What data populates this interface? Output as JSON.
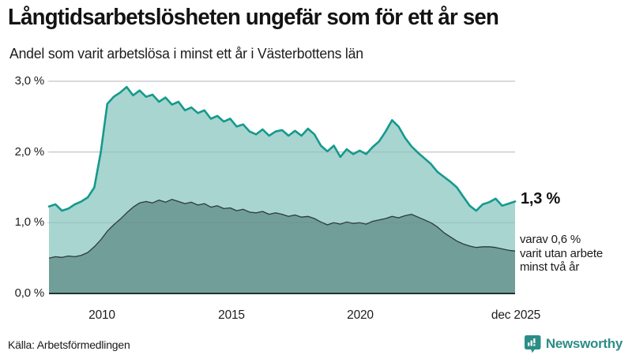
{
  "header": {
    "title": "Långtidsarbetslösheten ungefär som för ett år sen",
    "subtitle": "Andel som varit arbetslösa i minst ett år i Västerbottens län"
  },
  "chart_data": {
    "type": "area",
    "title": "Långtidsarbetslösheten ungefär som för ett år sen",
    "subtitle": "Andel som varit arbetslösa i minst ett år i Västerbottens län",
    "unit": "%",
    "x_start": 2008.0,
    "x_step": 0.25,
    "x_end": 2026.0,
    "x_end_label": "dec 2025",
    "ylim": [
      0,
      3
    ],
    "grid": "horizontal",
    "legend_position": "none",
    "colors": {
      "line_one_year": "#149a8c",
      "fill_one_year": "#a8d5d0",
      "line_two_years": "#2d3b39",
      "fill_two_years": "#719e99",
      "baseline": "#22312f",
      "gridline": "#d9dade",
      "gridline_overlay": "rgba(110,125,135,0.22)"
    },
    "yticks": [
      {
        "value": 0,
        "label": "0,0 %"
      },
      {
        "value": 1,
        "label": "1,0 %"
      },
      {
        "value": 2,
        "label": "2,0 %"
      },
      {
        "value": 3,
        "label": "3,0 %"
      }
    ],
    "xticks": [
      {
        "value": 2010.0,
        "label": "2010"
      },
      {
        "value": 2015.0,
        "label": "2015"
      },
      {
        "value": 2020.0,
        "label": "2020"
      },
      {
        "value": 2025.92,
        "label": "dec 2025"
      }
    ],
    "series": [
      {
        "name": "Arbetslösa minst ett år",
        "end_value_label": "1,3 %",
        "values": [
          1.23,
          1.26,
          1.17,
          1.2,
          1.26,
          1.3,
          1.36,
          1.5,
          2.0,
          2.68,
          2.78,
          2.84,
          2.92,
          2.8,
          2.87,
          2.78,
          2.81,
          2.71,
          2.77,
          2.67,
          2.71,
          2.59,
          2.63,
          2.55,
          2.59,
          2.47,
          2.51,
          2.43,
          2.47,
          2.36,
          2.39,
          2.29,
          2.25,
          2.32,
          2.23,
          2.29,
          2.31,
          2.23,
          2.3,
          2.23,
          2.33,
          2.25,
          2.09,
          2.01,
          2.09,
          1.93,
          2.04,
          1.97,
          2.02,
          1.97,
          2.07,
          2.15,
          2.29,
          2.45,
          2.36,
          2.2,
          2.08,
          1.99,
          1.91,
          1.83,
          1.72,
          1.65,
          1.58,
          1.5,
          1.37,
          1.24,
          1.17,
          1.26,
          1.29,
          1.34,
          1.24,
          1.27,
          1.3
        ]
      },
      {
        "name": "Arbetslösa minst två år",
        "end_value_label": "0,6 %",
        "values": [
          0.5,
          0.52,
          0.51,
          0.53,
          0.52,
          0.54,
          0.58,
          0.66,
          0.76,
          0.88,
          0.97,
          1.05,
          1.14,
          1.22,
          1.28,
          1.3,
          1.28,
          1.32,
          1.29,
          1.33,
          1.3,
          1.27,
          1.29,
          1.25,
          1.27,
          1.22,
          1.24,
          1.2,
          1.21,
          1.17,
          1.19,
          1.15,
          1.14,
          1.16,
          1.12,
          1.14,
          1.12,
          1.09,
          1.11,
          1.08,
          1.09,
          1.06,
          1.01,
          0.97,
          1.0,
          0.98,
          1.01,
          0.99,
          1.0,
          0.98,
          1.02,
          1.04,
          1.06,
          1.09,
          1.07,
          1.1,
          1.12,
          1.08,
          1.04,
          1.0,
          0.94,
          0.86,
          0.8,
          0.74,
          0.7,
          0.67,
          0.65,
          0.66,
          0.66,
          0.65,
          0.63,
          0.61,
          0.6
        ]
      }
    ]
  },
  "annotations": {
    "end_value": "1,3 %",
    "note_line1": "varav 0,6 %",
    "note_line2": "varit utan arbete",
    "note_line3": "minst två år"
  },
  "footer": {
    "source": "Källa: Arbetsförmedlingen",
    "brand": "Newsworthy"
  }
}
